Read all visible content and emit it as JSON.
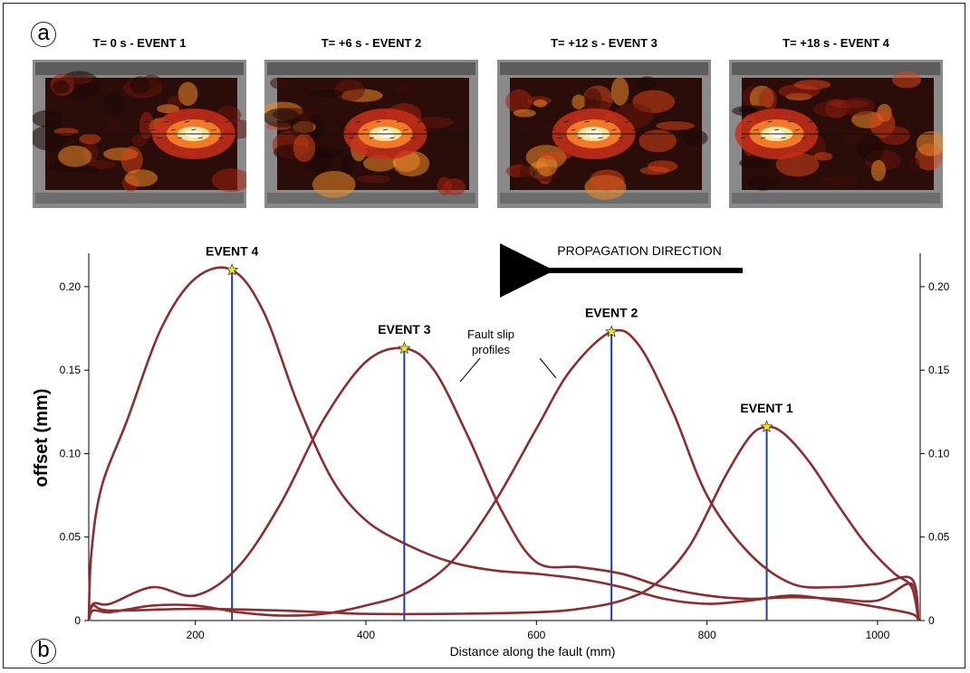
{
  "panel_a": {
    "label": "a",
    "snapshots": [
      {
        "title": "T= 0 s - EVENT 1",
        "hotspot_x": 850
      },
      {
        "title": "T= +6 s - EVENT 2",
        "hotspot_x": 620
      },
      {
        "title": "T= +12 s - EVENT 3",
        "hotspot_x": 480
      },
      {
        "title": "T= +18 s - EVENT 4",
        "hotspot_x": 200
      }
    ]
  },
  "panel_b": {
    "label": "b"
  },
  "chart_data": {
    "type": "line",
    "xlabel": "Distance along the fault (mm)",
    "ylabel": "offset (mm)",
    "xlim": [
      75,
      1050
    ],
    "ylim": [
      0,
      0.22
    ],
    "x_ticks": [
      200,
      400,
      600,
      800,
      1000
    ],
    "y_ticks": [
      0,
      0.05,
      0.1,
      0.15,
      0.2
    ],
    "y_tick_labels": [
      "0",
      "0.05",
      "0.10",
      "0.15",
      "0.20"
    ],
    "right_axis_tick_labels": [
      "0",
      "0.05",
      "0.10",
      "0.15",
      "0.20"
    ],
    "grid": false,
    "line_color": "#8b2e32",
    "marker_color": "#f5e21a",
    "peak_line_color": "#1f3f9e",
    "annotations": {
      "direction_label": "PROPAGATION DIRECTION",
      "profiles_label_line1": "Fault slip",
      "profiles_label_line2": "profiles"
    },
    "series": [
      {
        "label": "EVENT 1",
        "peak": {
          "x": 870,
          "y": 0.116
        },
        "x": [
          75,
          80,
          100,
          200,
          300,
          400,
          500,
          600,
          650,
          700,
          740,
          780,
          820,
          850,
          870,
          890,
          920,
          950,
          980,
          1000,
          1020,
          1040,
          1048
        ],
        "y": [
          0.0,
          0.009,
          0.006,
          0.007,
          0.006,
          0.004,
          0.004,
          0.005,
          0.007,
          0.012,
          0.022,
          0.045,
          0.085,
          0.11,
          0.116,
          0.112,
          0.095,
          0.072,
          0.05,
          0.038,
          0.028,
          0.02,
          0.0
        ]
      },
      {
        "label": "EVENT 2",
        "peak": {
          "x": 688,
          "y": 0.173
        },
        "x": [
          75,
          80,
          100,
          150,
          200,
          250,
          300,
          350,
          400,
          450,
          500,
          550,
          600,
          640,
          688,
          720,
          760,
          800,
          850,
          900,
          950,
          1000,
          1040,
          1048
        ],
        "y": [
          0.0,
          0.006,
          0.005,
          0.009,
          0.009,
          0.005,
          0.003,
          0.004,
          0.009,
          0.017,
          0.035,
          0.07,
          0.115,
          0.15,
          0.173,
          0.165,
          0.125,
          0.075,
          0.04,
          0.022,
          0.02,
          0.022,
          0.025,
          0.0
        ]
      },
      {
        "label": "EVENT 3",
        "peak": {
          "x": 445,
          "y": 0.163
        },
        "x": [
          75,
          80,
          100,
          150,
          200,
          250,
          300,
          350,
          400,
          445,
          480,
          520,
          560,
          600,
          650,
          700,
          750,
          800,
          850,
          900,
          950,
          1000,
          1040,
          1048
        ],
        "y": [
          0.0,
          0.01,
          0.01,
          0.02,
          0.015,
          0.032,
          0.07,
          0.12,
          0.155,
          0.163,
          0.15,
          0.11,
          0.065,
          0.035,
          0.032,
          0.028,
          0.02,
          0.015,
          0.013,
          0.014,
          0.013,
          0.012,
          0.022,
          0.0
        ]
      },
      {
        "label": "EVENT 4",
        "peak": {
          "x": 243,
          "y": 0.21
        },
        "x": [
          75,
          78,
          90,
          120,
          160,
          200,
          243,
          280,
          320,
          360,
          400,
          450,
          500,
          550,
          600,
          650,
          700,
          750,
          800,
          850,
          900,
          950,
          1000,
          1040,
          1048
        ],
        "y": [
          0.0,
          0.04,
          0.08,
          0.12,
          0.175,
          0.205,
          0.21,
          0.185,
          0.13,
          0.085,
          0.06,
          0.045,
          0.035,
          0.03,
          0.028,
          0.025,
          0.02,
          0.013,
          0.01,
          0.012,
          0.015,
          0.012,
          0.008,
          0.004,
          0.0
        ]
      }
    ]
  }
}
